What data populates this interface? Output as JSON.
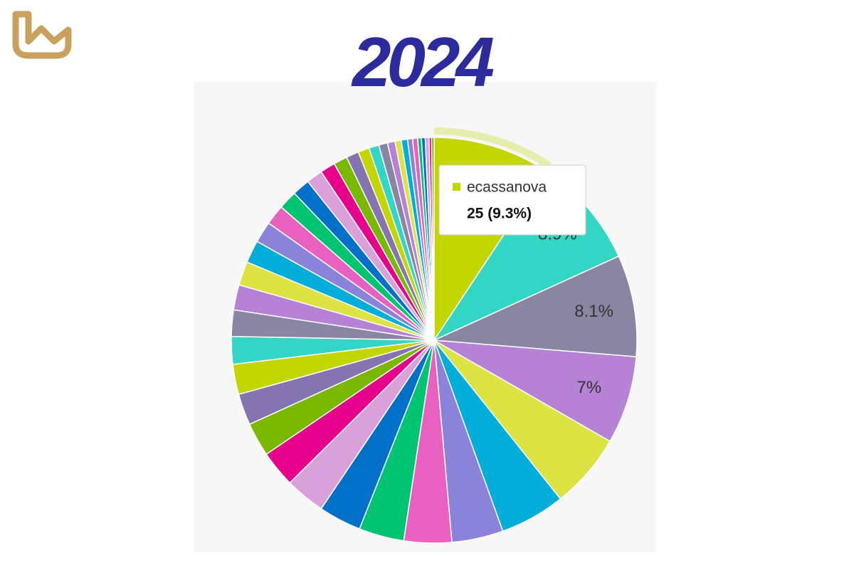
{
  "chart_data": {
    "type": "pie",
    "title": "2024",
    "categories": [
      "ecassanova",
      null,
      null,
      null,
      null,
      null,
      null,
      null,
      null,
      null,
      null,
      null,
      null,
      null,
      null,
      null,
      null,
      null,
      null,
      null,
      null,
      null,
      null,
      null,
      null,
      null,
      null,
      null,
      null,
      null,
      null,
      null,
      null,
      null,
      null,
      null,
      null,
      null,
      null,
      null,
      null
    ],
    "values": [
      9.3,
      8.9,
      8.1,
      7.0,
      6.0,
      5.2,
      4.1,
      3.8,
      3.6,
      3.4,
      3.2,
      2.9,
      2.7,
      2.5,
      2.4,
      2.2,
      2.1,
      2.0,
      1.9,
      1.8,
      1.7,
      1.6,
      1.5,
      1.4,
      1.3,
      1.2,
      1.1,
      1.0,
      0.9,
      0.8,
      0.7,
      0.6,
      0.5,
      0.5,
      0.4,
      0.4,
      0.3,
      0.3,
      0.3,
      0.2,
      0.2
    ],
    "value_labels": [
      null,
      "8.9%",
      "8.1%",
      "7%",
      null,
      null,
      null,
      null,
      null,
      null,
      null,
      null,
      null,
      null,
      null,
      null,
      null,
      null,
      null,
      null,
      null,
      null,
      null,
      null,
      null,
      null,
      null,
      null,
      null,
      null,
      null,
      null,
      null,
      null,
      null,
      null,
      null,
      null,
      null,
      null,
      null
    ],
    "palette": [
      "#c4d600",
      "#33d6c4",
      "#8a85a3",
      "#b682d6",
      "#dde343",
      "#00aed9",
      "#8a83d9",
      "#e860c0",
      "#00c472",
      "#0070c9",
      "#d9a0d9",
      "#e6008c",
      "#7ab800",
      "#8474b0"
    ],
    "tooltip": {
      "name": "ecassanova",
      "text": "25 (9.3%)"
    }
  }
}
